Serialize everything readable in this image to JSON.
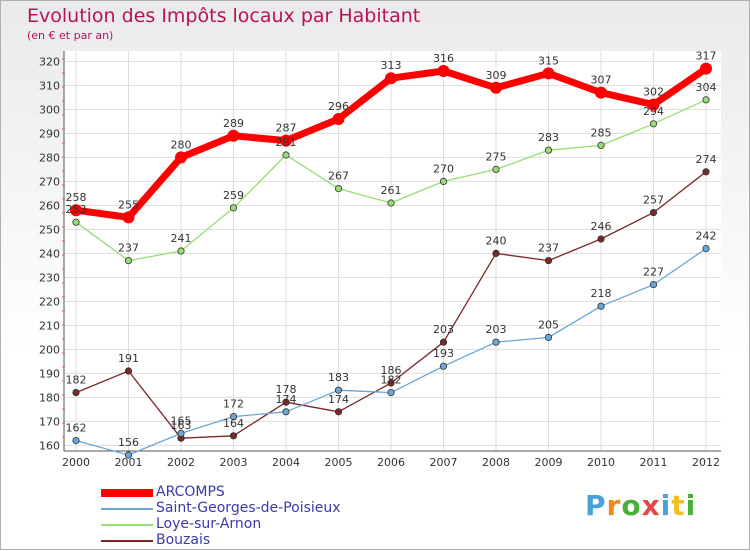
{
  "title": "Evolution des Impôts locaux par Habitant",
  "subtitle": "(en € et par an)",
  "brand": {
    "text": "Proxiti",
    "colors": [
      "#4aa0d8",
      "#f08a1a",
      "#48b038",
      "#e04a4a",
      "#4aa0d8",
      "#f0c020",
      "#48b038"
    ]
  },
  "chart_data": {
    "type": "line",
    "x": [
      "2000",
      "2001",
      "2002",
      "2003",
      "2004",
      "2005",
      "2006",
      "2007",
      "2008",
      "2009",
      "2010",
      "2011",
      "2012"
    ],
    "ylim": [
      150,
      320
    ],
    "yticks": [
      160,
      170,
      180,
      190,
      200,
      210,
      220,
      230,
      240,
      250,
      260,
      270,
      280,
      290,
      300,
      310,
      320
    ],
    "grid": true,
    "legend_position": "bottom-left",
    "series": [
      {
        "name": "ARCOMPS",
        "color": "#ff0000",
        "values": [
          258,
          255,
          280,
          289,
          287,
          296,
          313,
          316,
          309,
          315,
          307,
          302,
          317
        ]
      },
      {
        "name": "Saint-Georges-de-Poisieux",
        "color": "#6aa6d8",
        "values": [
          162,
          156,
          165,
          172,
          174,
          183,
          182,
          193,
          203,
          205,
          218,
          227,
          242
        ]
      },
      {
        "name": "Loye-sur-Arnon",
        "color": "#98dc74",
        "values": [
          253,
          237,
          241,
          259,
          281,
          267,
          261,
          270,
          275,
          283,
          285,
          294,
          304
        ]
      },
      {
        "name": "Bouzais",
        "color": "#7a2828",
        "values": [
          182,
          191,
          163,
          164,
          178,
          174,
          186,
          203,
          240,
          237,
          246,
          257,
          274
        ]
      }
    ]
  }
}
